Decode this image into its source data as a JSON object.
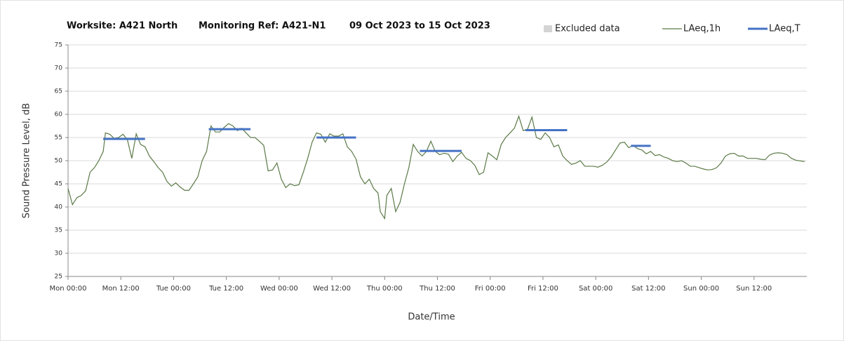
{
  "chart_data": {
    "type": "line",
    "title": [
      "Worksite: A421 North",
      "Monitoring Ref: A421-N1",
      "09 Oct 2023 to 15 Oct 2023"
    ],
    "xlabel": "Date/Time",
    "ylabel": "Sound Pressure Level, dB",
    "xlim": [
      0,
      168
    ],
    "xticks": [
      {
        "value": 0,
        "label": "Mon 00:00"
      },
      {
        "value": 12,
        "label": "Mon 12:00"
      },
      {
        "value": 24,
        "label": "Tue 00:00"
      },
      {
        "value": 36,
        "label": "Tue 12:00"
      },
      {
        "value": 48,
        "label": "Wed 00:00"
      },
      {
        "value": 60,
        "label": "Wed 12:00"
      },
      {
        "value": 72,
        "label": "Thu 00:00"
      },
      {
        "value": 84,
        "label": "Thu 12:00"
      },
      {
        "value": 96,
        "label": "Fri 00:00"
      },
      {
        "value": 108,
        "label": "Fri 12:00"
      },
      {
        "value": 120,
        "label": "Sat 00:00"
      },
      {
        "value": 132,
        "label": "Sat 12:00"
      },
      {
        "value": 144,
        "label": "Sun 00:00"
      },
      {
        "value": 156,
        "label": "Sun 12:00"
      }
    ],
    "ylim": [
      25,
      75
    ],
    "yticks": [
      25,
      30,
      35,
      40,
      45,
      50,
      55,
      60,
      65,
      70,
      75
    ],
    "grid": true,
    "excluded": {
      "name": "Excluded data",
      "color": "#d4d4d4"
    },
    "series": [
      {
        "name": "LAeq,1h",
        "color": "#5b7a47",
        "x": [
          0,
          1,
          2,
          3,
          4,
          5,
          6,
          7,
          8,
          8.5,
          9.5,
          10.5,
          11.5,
          12.5,
          13.5,
          14.5,
          15.5,
          16.5,
          17.5,
          18.5,
          19.5,
          20.5,
          21.5,
          22.5,
          23.5,
          24.5,
          25.5,
          26.5,
          27.5,
          28.5,
          29.5,
          30.5,
          31.5,
          32.5,
          33.5,
          34.5,
          35.5,
          36.5,
          37.5,
          38.5,
          39.5,
          40.5,
          41.5,
          42.5,
          43.5,
          44.5,
          45.5,
          46.5,
          47.5,
          48.5,
          49.5,
          50.5,
          51.5,
          52.5,
          53.5,
          54.5,
          55.5,
          56.5,
          57.5,
          58.5,
          59.5,
          60.5,
          61.5,
          62.5,
          63.5,
          64.5,
          65.5,
          66.5,
          67.5,
          68.5,
          69.5,
          70.5,
          71,
          72,
          72.5,
          73.5,
          74.5,
          75.5,
          76.5,
          77.5,
          78.5,
          79.5,
          80.5,
          81.5,
          82.5,
          83.5,
          84.5,
          85.5,
          86.5,
          87.5,
          88.5,
          89.5,
          90.5,
          91.5,
          92.5,
          93.5,
          94.5,
          95.5,
          96.5,
          97.5,
          98.5,
          99.5,
          100.5,
          101.5,
          102.5,
          103.5,
          104.5,
          105.5,
          106.5,
          107.5,
          108.5,
          109.5,
          110.5,
          111.5,
          112.5,
          113.5,
          114.5,
          115.5,
          116.5,
          117.5,
          118.5,
          119.5,
          120.5,
          121.5,
          122.5,
          123.5,
          124.5,
          125.5,
          126.5,
          127.5,
          128.5,
          129.5,
          130.5,
          131.5,
          132.5,
          133.5,
          134.5,
          135.5,
          136.5,
          137.5,
          138.5,
          139.5,
          140.5,
          141.5,
          142.5,
          143.5,
          144.5,
          145.5,
          146.5,
          147.5,
          148.5,
          149.5,
          150.5,
          151.5,
          152.5,
          153.5,
          154.5,
          155.5,
          156.5,
          157.5,
          158.5,
          159.5,
          160.5,
          161.5,
          162.5,
          163.5,
          164.5,
          165.5,
          167.5
        ],
        "values": [
          44,
          40.5,
          42,
          42.5,
          43.5,
          47.5,
          48.5,
          50,
          52,
          56,
          55.7,
          54.8,
          55,
          55.7,
          54.5,
          50.5,
          55.8,
          53.5,
          53,
          51,
          49.8,
          48.5,
          47.5,
          45.5,
          44.5,
          45.2,
          44.3,
          43.6,
          43.6,
          45,
          46.5,
          50,
          52,
          57.5,
          56.2,
          56.2,
          57.2,
          58,
          57.5,
          56.5,
          57,
          56,
          55,
          55,
          54.2,
          53.3,
          47.8,
          48,
          49.5,
          46,
          44.2,
          45,
          44.6,
          44.8,
          47.5,
          50.5,
          54,
          56,
          55.7,
          54,
          55.8,
          55.3,
          55.3,
          55.8,
          53,
          52,
          50.3,
          46.5,
          45,
          46,
          44,
          43,
          39,
          37.5,
          42.5,
          44,
          39,
          41,
          45,
          48.5,
          53.5,
          52,
          51,
          52,
          54.2,
          52,
          51.3,
          51.6,
          51.4,
          49.8,
          51,
          51.8,
          50.5,
          50,
          49,
          47,
          47.5,
          51.7,
          51,
          50.2,
          53.5,
          55,
          56,
          57,
          59.6,
          56.5,
          56.8,
          59.4,
          55,
          54.6,
          56,
          55,
          53,
          53.4,
          51,
          50,
          49.2,
          49.5,
          50,
          48.8,
          48.8,
          48.8,
          48.6,
          49,
          49.7,
          50.8,
          52.3,
          53.8,
          54,
          52.8,
          53.3,
          52.6,
          52.3,
          51.5,
          52,
          51.1,
          51.3,
          50.8,
          50.5,
          50,
          49.8,
          50,
          49.5,
          48.8,
          48.8,
          48.5,
          48.2,
          48,
          48.1,
          48.5,
          49.5,
          51,
          51.5,
          51.6,
          51,
          51,
          50.5,
          50.5,
          50.5,
          50.3,
          50.2,
          51.2,
          51.6,
          51.7,
          51.6,
          51.3,
          50.5,
          50.1,
          49.8
        ]
      },
      {
        "name": "LAeq,T",
        "color": "#4472c4",
        "periods": [
          {
            "start": 8,
            "end": 17.5,
            "value": 54.7
          },
          {
            "start": 32,
            "end": 41.5,
            "value": 56.8
          },
          {
            "start": 56.5,
            "end": 65.5,
            "value": 55
          },
          {
            "start": 80,
            "end": 89.5,
            "value": 52.1
          },
          {
            "start": 104,
            "end": 113.5,
            "value": 56.6
          },
          {
            "start": 128,
            "end": 132.5,
            "value": 53.2
          }
        ]
      }
    ]
  }
}
